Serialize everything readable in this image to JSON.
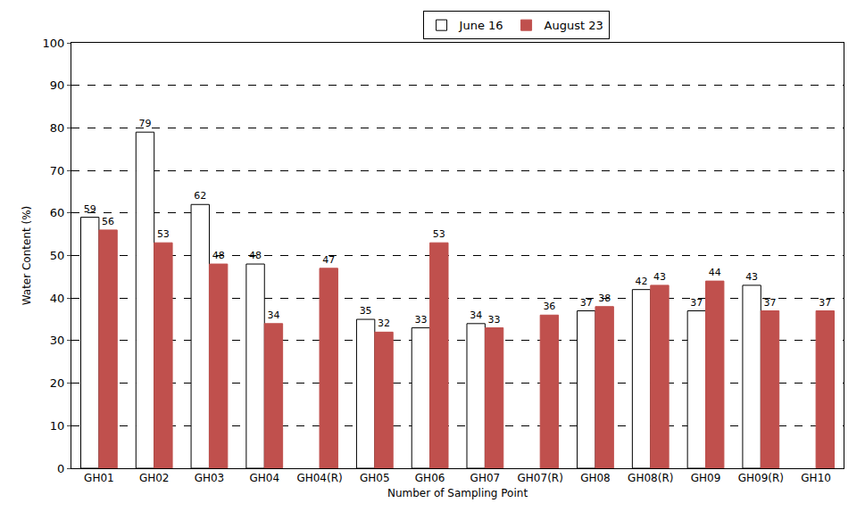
{
  "chart_data": {
    "type": "bar",
    "categories": [
      "GH01",
      "GH02",
      "GH03",
      "GH04",
      "GH04(R)",
      "GH05",
      "GH06",
      "GH07",
      "GH07(R)",
      "GH08",
      "GH08(R)",
      "GH09",
      "GH09(R)",
      "GH10"
    ],
    "series": [
      {
        "name": "June 16",
        "color": "#ffffff",
        "values": [
          59,
          79,
          62,
          48,
          null,
          35,
          33,
          34,
          null,
          37,
          42,
          37,
          43,
          null
        ]
      },
      {
        "name": "August 23",
        "color": "#c0504d",
        "values": [
          56,
          53,
          48,
          34,
          47,
          32,
          53,
          33,
          36,
          38,
          43,
          44,
          37,
          37
        ]
      }
    ],
    "x_label": "Number of Sampling Point",
    "y_label": "Water Content (%)",
    "ylim": [
      0,
      100
    ],
    "yticks": [
      0,
      10,
      20,
      30,
      40,
      50,
      60,
      70,
      80,
      90,
      100
    ],
    "grid": true,
    "legend": "top",
    "data_labels": true
  }
}
